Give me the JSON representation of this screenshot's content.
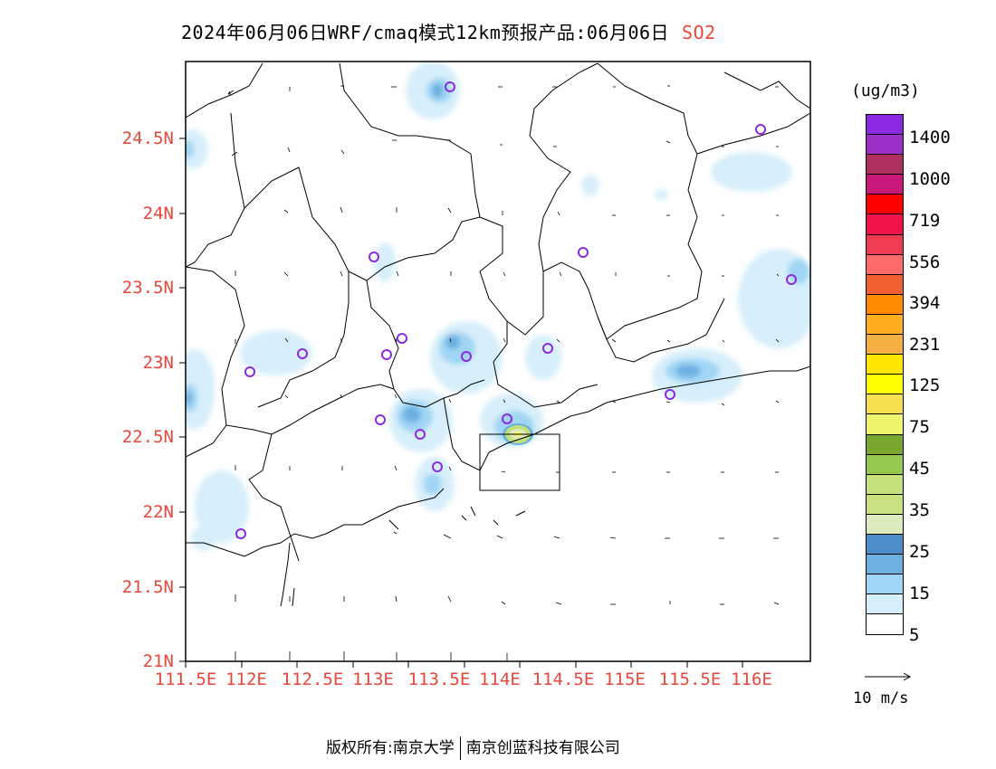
{
  "title": {
    "main": "2024年06月06日WRF/cmaq模式12km预报产品:06月06日",
    "pollutant": "SO2"
  },
  "axes": {
    "lat_labels": [
      "24.5N",
      "24N",
      "23.5N",
      "23N",
      "22.5N",
      "22N",
      "21.5N",
      "21N"
    ],
    "lon_labels": [
      "111.5E",
      "112E",
      "112.5E",
      "113E",
      "113.5E",
      "114E",
      "114.5E",
      "115E",
      "115.5E",
      "116E"
    ]
  },
  "colorbar": {
    "unit": "(ug/m3)",
    "labels": [
      "1400",
      "1000",
      "719",
      "556",
      "394",
      "231",
      "125",
      "75",
      "45",
      "35",
      "25",
      "15",
      "5"
    ],
    "colors_top_to_bottom": [
      "#8a2be2",
      "#9b30c8",
      "#b03060",
      "#c8187a",
      "#ff0000",
      "#f0144c",
      "#f03c50",
      "#ff6a6a",
      "#f06030",
      "#ff8c00",
      "#ffb020",
      "#f5b042",
      "#ffe600",
      "#ffff00",
      "#f5e050",
      "#f0f56e",
      "#78a830",
      "#96c850",
      "#c3e07a",
      "#c8e080",
      "#dcebbe",
      "#4b8ec8",
      "#6cb0e0",
      "#a0d5f5",
      "#d7effb",
      "#ffffff"
    ]
  },
  "wind_legend": {
    "label": "10 m/s"
  },
  "copyright": {
    "left": "版权所有:南京大学",
    "right": "南京创蓝科技有限公司"
  },
  "monitor_site_marker_color": "#8a2be2",
  "lat_label_color": "#e8473b"
}
